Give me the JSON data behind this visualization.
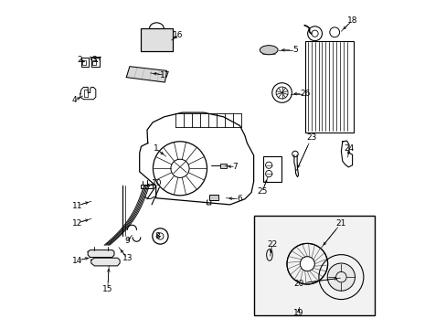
{
  "background_color": "#ffffff",
  "label_data": [
    [
      1,
      0.295,
      0.548,
      0.325,
      0.525
    ],
    [
      2,
      0.062,
      0.818,
      0.078,
      0.812
    ],
    [
      3,
      0.108,
      0.818,
      0.118,
      0.812
    ],
    [
      4,
      0.048,
      0.695,
      0.072,
      0.708
    ],
    [
      5,
      0.718,
      0.848,
      0.668,
      0.848
    ],
    [
      6,
      0.548,
      0.395,
      0.508,
      0.398
    ],
    [
      7,
      0.535,
      0.492,
      0.505,
      0.496
    ],
    [
      8,
      0.298,
      0.282,
      0.308,
      0.282
    ],
    [
      9,
      0.208,
      0.268,
      0.222,
      0.285
    ],
    [
      10,
      0.298,
      0.442,
      0.258,
      0.435
    ],
    [
      11,
      0.055,
      0.375,
      0.098,
      0.388
    ],
    [
      12,
      0.055,
      0.322,
      0.098,
      0.335
    ],
    [
      13,
      0.208,
      0.215,
      0.182,
      0.248
    ],
    [
      14,
      0.055,
      0.208,
      0.098,
      0.218
    ],
    [
      15,
      0.148,
      0.122,
      0.152,
      0.192
    ],
    [
      16,
      0.362,
      0.892,
      0.342,
      0.878
    ],
    [
      17,
      0.322,
      0.772,
      0.278,
      0.778
    ],
    [
      18,
      0.892,
      0.938,
      0.858,
      0.905
    ],
    [
      19,
      0.728,
      0.048,
      0.728,
      0.068
    ],
    [
      20,
      0.728,
      0.138,
      0.855,
      0.155
    ],
    [
      21,
      0.858,
      0.322,
      0.798,
      0.248
    ],
    [
      22,
      0.648,
      0.258,
      0.642,
      0.222
    ],
    [
      23,
      0.768,
      0.582,
      0.722,
      0.482
    ],
    [
      24,
      0.882,
      0.548,
      0.878,
      0.522
    ],
    [
      25,
      0.618,
      0.418,
      0.635,
      0.462
    ],
    [
      26,
      0.748,
      0.715,
      0.705,
      0.715
    ]
  ]
}
